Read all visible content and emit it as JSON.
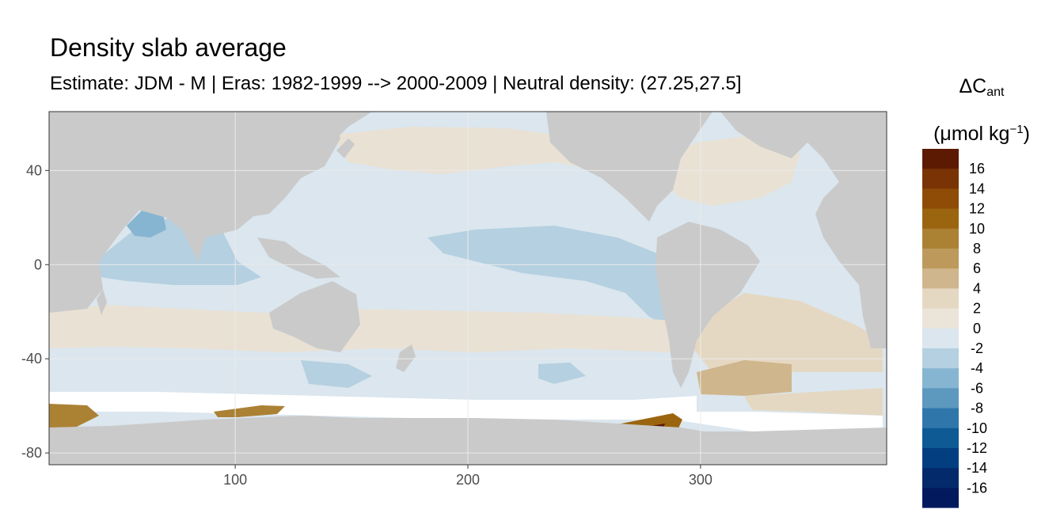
{
  "title": "Density slab average",
  "subtitle": "Estimate: JDM - M | Eras: 1982-1999 --> 2000-2009 | Neutral density: (27.25,27.5]",
  "legend": {
    "title_main": "ΔC",
    "title_sub": "ant",
    "unit_prefix": "(μmol kg",
    "unit_sup": "−1",
    "unit_suffix": ")",
    "bins": [
      {
        "label": "16",
        "color": "#5c1a02"
      },
      {
        "label": "14",
        "color": "#7a3304"
      },
      {
        "label": "12",
        "color": "#8e4c07"
      },
      {
        "label": "10",
        "color": "#9b650f"
      },
      {
        "label": "8",
        "color": "#ab8134"
      },
      {
        "label": "6",
        "color": "#bd9a5c"
      },
      {
        "label": "4",
        "color": "#d0b68d"
      },
      {
        "label": "2",
        "color": "#e5d8c3"
      },
      {
        "label": "0",
        "color": "#ebe4d9"
      },
      {
        "label": "-2",
        "color": "#dbe6ee"
      },
      {
        "label": "-4",
        "color": "#b5d0e0"
      },
      {
        "label": "-6",
        "color": "#86b5d1"
      },
      {
        "label": "-8",
        "color": "#5d98bf"
      },
      {
        "label": "-10",
        "color": "#2f77ab"
      },
      {
        "label": "-12",
        "color": "#0e5a95"
      },
      {
        "label": "-14",
        "color": "#033f80"
      },
      {
        "label": "-16",
        "color": "#032a6b"
      }
    ],
    "extra_bottom_color": "#02195e"
  },
  "axes": {
    "x_ticks": [
      "100",
      "200",
      "300"
    ],
    "x_tick_values": [
      100,
      200,
      300
    ],
    "y_ticks": [
      "40",
      "0",
      "-40",
      "-80"
    ],
    "y_tick_values": [
      40,
      0,
      -40,
      -80
    ],
    "xlim": [
      20,
      380
    ],
    "ylim": [
      -85,
      65
    ]
  },
  "colors": {
    "land": "#cacaca",
    "no_data": "#ffffff",
    "grid": "#ebebeb",
    "frame": "#333333"
  }
}
